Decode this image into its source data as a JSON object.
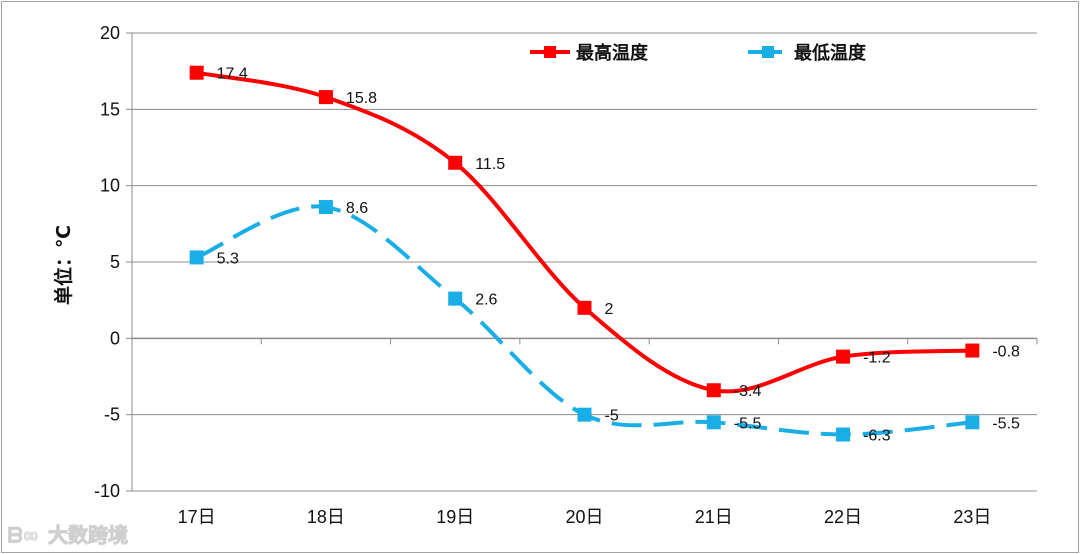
{
  "chart_data": {
    "type": "line",
    "categories": [
      "17日",
      "18日",
      "19日",
      "20日",
      "21日",
      "22日",
      "23日"
    ],
    "series": [
      {
        "name": "最高温度",
        "values": [
          17.4,
          15.8,
          11.5,
          2,
          -3.4,
          -1.2,
          -0.8
        ],
        "color": "#ff0000",
        "dash": false
      },
      {
        "name": "最低温度",
        "values": [
          5.3,
          8.6,
          2.6,
          -5,
          -5.5,
          -6.3,
          -5.5
        ],
        "color": "#1aaee6",
        "dash": true
      }
    ],
    "data_labels": {
      "high": [
        "17.4",
        "15.8",
        "11.5",
        "2",
        "-3.4",
        "-1.2",
        "-0.8"
      ],
      "low": [
        "5.3",
        "8.6",
        "2.6",
        "-5",
        "-5.5",
        "-6.3",
        "-5.5"
      ]
    },
    "yticks": [
      "20",
      "15",
      "10",
      "5",
      "0",
      "-5",
      "-10"
    ],
    "ylim": [
      -10,
      20
    ],
    "ylabel": "单位：℃",
    "xlabel": "",
    "grid": true,
    "legend_position": "top"
  },
  "watermark": {
    "text": "大数跨境"
  }
}
